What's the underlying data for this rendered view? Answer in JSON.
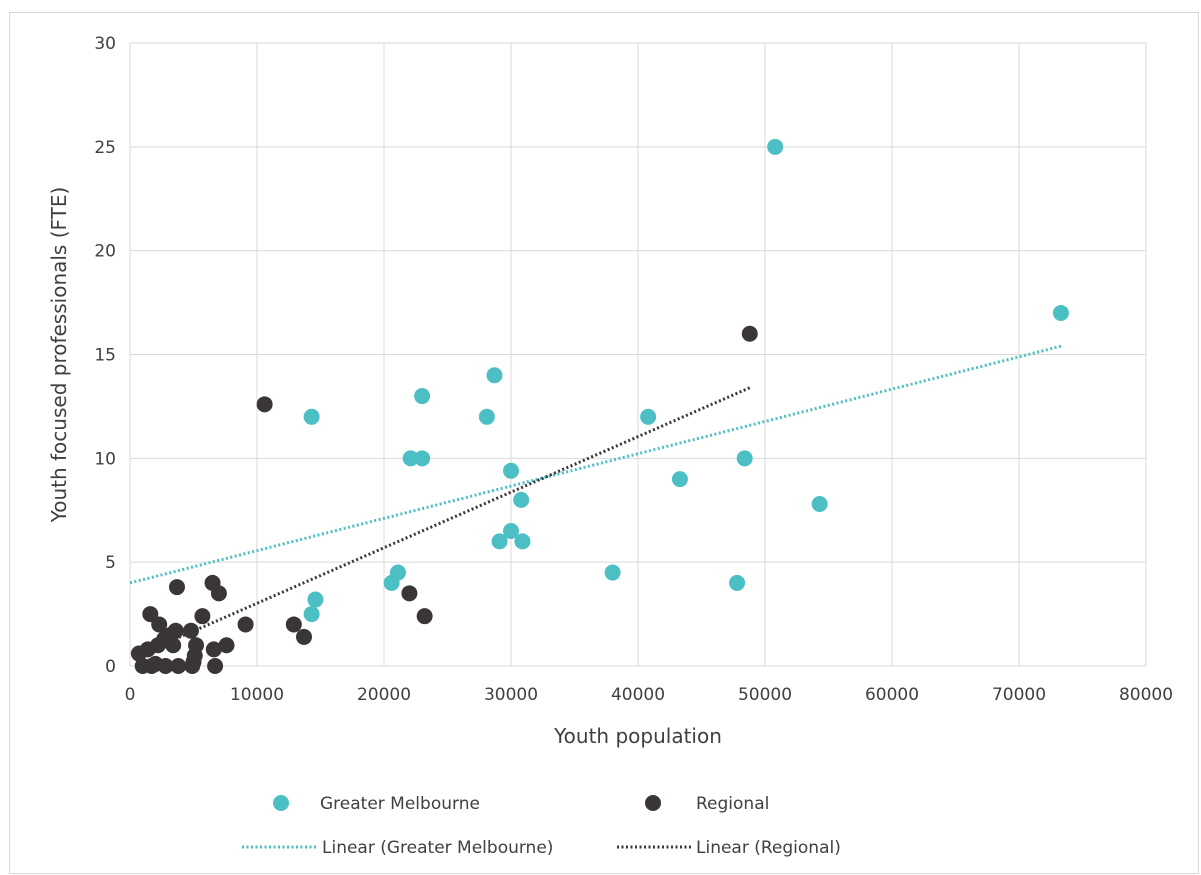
{
  "chart_data": {
    "type": "scatter",
    "title": "",
    "xlabel": "Youth population",
    "ylabel": "Youth focused professionals (FTE)",
    "xlim": [
      0,
      80000
    ],
    "ylim": [
      0,
      30
    ],
    "xticks": [
      "0",
      "10000",
      "20000",
      "30000",
      "40000",
      "50000",
      "60000",
      "70000",
      "80000"
    ],
    "yticks": [
      "0",
      "5",
      "10",
      "15",
      "20",
      "25",
      "30"
    ],
    "grid": true,
    "legend_position": "bottom",
    "series": [
      {
        "name": "Greater Melbourne",
        "color": "#4BBFC3",
        "points": [
          [
            14300,
            2.5
          ],
          [
            14600,
            3.2
          ],
          [
            14300,
            12
          ],
          [
            20600,
            4
          ],
          [
            21100,
            4.5
          ],
          [
            22100,
            10
          ],
          [
            23000,
            10
          ],
          [
            23000,
            13
          ],
          [
            28100,
            12
          ],
          [
            28700,
            14
          ],
          [
            29100,
            6
          ],
          [
            30000,
            6.5
          ],
          [
            30000,
            9.4
          ],
          [
            30800,
            8
          ],
          [
            30900,
            6
          ],
          [
            38000,
            4.5
          ],
          [
            40800,
            12
          ],
          [
            43300,
            9
          ],
          [
            47800,
            4
          ],
          [
            48400,
            10
          ],
          [
            50800,
            25
          ],
          [
            54300,
            7.8
          ],
          [
            73300,
            17
          ]
        ]
      },
      {
        "name": "Regional",
        "color": "#3A3536",
        "points": [
          [
            700,
            0.6
          ],
          [
            1000,
            0
          ],
          [
            1400,
            0.8
          ],
          [
            1600,
            2.5
          ],
          [
            1700,
            0
          ],
          [
            2000,
            0.1
          ],
          [
            2200,
            1
          ],
          [
            2300,
            2
          ],
          [
            2700,
            1.3
          ],
          [
            2800,
            0
          ],
          [
            3200,
            1.5
          ],
          [
            3400,
            1
          ],
          [
            3600,
            1.7
          ],
          [
            3700,
            3.8
          ],
          [
            3800,
            0
          ],
          [
            4800,
            1.7
          ],
          [
            4900,
            0
          ],
          [
            5000,
            0.2
          ],
          [
            5100,
            0.5
          ],
          [
            5200,
            1
          ],
          [
            5700,
            2.4
          ],
          [
            6500,
            4
          ],
          [
            6600,
            0.8
          ],
          [
            6700,
            0
          ],
          [
            7000,
            3.5
          ],
          [
            7600,
            1
          ],
          [
            9100,
            2
          ],
          [
            10600,
            12.6
          ],
          [
            12900,
            2
          ],
          [
            13700,
            1.4
          ],
          [
            22000,
            3.5
          ],
          [
            23200,
            2.4
          ],
          [
            48800,
            16
          ]
        ]
      }
    ],
    "trendlines": [
      {
        "name": "Linear (Greater Melbourne)",
        "color": "#4BBFC3",
        "style": "dotted",
        "x": [
          0,
          73300
        ],
        "y": [
          4.0,
          15.4
        ]
      },
      {
        "name": "Linear (Regional)",
        "color": "#3A3536",
        "style": "dotted",
        "x": [
          3200,
          48800
        ],
        "y": [
          1.2,
          13.4
        ]
      }
    ]
  }
}
